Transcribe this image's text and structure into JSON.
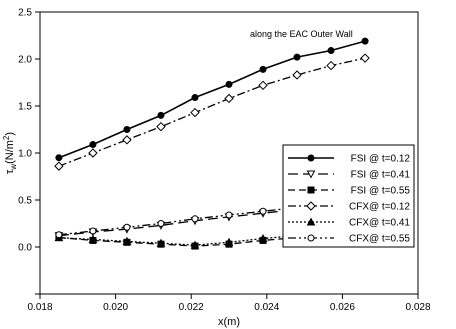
{
  "chart_data": {
    "type": "line",
    "title": "",
    "xlabel": "x(m)",
    "ylabel": "τw(N/m²)",
    "ylabel_parts": {
      "base": "τ",
      "sub": "w",
      "mid": "(N/m",
      "sup": "2",
      "end": ")"
    },
    "annotation": "along the EAC Outer Wall",
    "xlim": [
      0.018,
      0.028
    ],
    "ylim": [
      -0.5,
      2.5
    ],
    "xticks": [
      "0.018",
      "0.020",
      "0.022",
      "0.024",
      "0.026",
      "0.028"
    ],
    "yticks": [
      "2.5",
      "2.0",
      "1.5",
      "1.0",
      "0.5",
      "0.0"
    ],
    "xtick_values": [
      0.018,
      0.02,
      0.022,
      0.024,
      0.026,
      0.028
    ],
    "ytick_values": [
      2.5,
      2.0,
      1.5,
      1.0,
      0.5,
      0.0
    ],
    "grid": false,
    "legend_position": "right",
    "x": [
      0.0185,
      0.0194,
      0.0203,
      0.0212,
      0.0221,
      0.023,
      0.0239,
      0.0248,
      0.0257,
      0.0266
    ],
    "series": [
      {
        "name": "FSI @ t=0.12",
        "marker": "circle-filled",
        "dash": "solid",
        "values": [
          0.95,
          1.09,
          1.25,
          1.4,
          1.59,
          1.73,
          1.89,
          2.02,
          2.09,
          2.19
        ]
      },
      {
        "name": "FSI @ t=0.41",
        "marker": "triangle-down-open",
        "dash": "long",
        "values": [
          0.12,
          0.16,
          0.19,
          0.23,
          0.28,
          0.32,
          0.36,
          0.4,
          0.44,
          0.47
        ]
      },
      {
        "name": "FSI @ t=0.55",
        "marker": "square-filled",
        "dash": "medium",
        "values": [
          0.1,
          0.07,
          0.05,
          0.03,
          0.01,
          0.03,
          0.07,
          0.1,
          0.13,
          0.15
        ]
      },
      {
        "name": "CFX@ t=0.12",
        "marker": "diamond-open",
        "dash": "dashdot",
        "values": [
          0.86,
          1.0,
          1.14,
          1.28,
          1.43,
          1.58,
          1.72,
          1.83,
          1.93,
          2.01
        ]
      },
      {
        "name": "CFX@ t=0.41",
        "marker": "triangle-up-filled",
        "dash": "dotted",
        "values": [
          0.1,
          0.08,
          0.06,
          0.04,
          0.02,
          0.05,
          0.09,
          0.12,
          0.15,
          0.17
        ]
      },
      {
        "name": "CFX@ t=0.55",
        "marker": "circle-open",
        "dash": "dashdotdot",
        "values": [
          0.13,
          0.17,
          0.21,
          0.25,
          0.3,
          0.34,
          0.38,
          0.42,
          0.45,
          0.49
        ]
      }
    ]
  }
}
